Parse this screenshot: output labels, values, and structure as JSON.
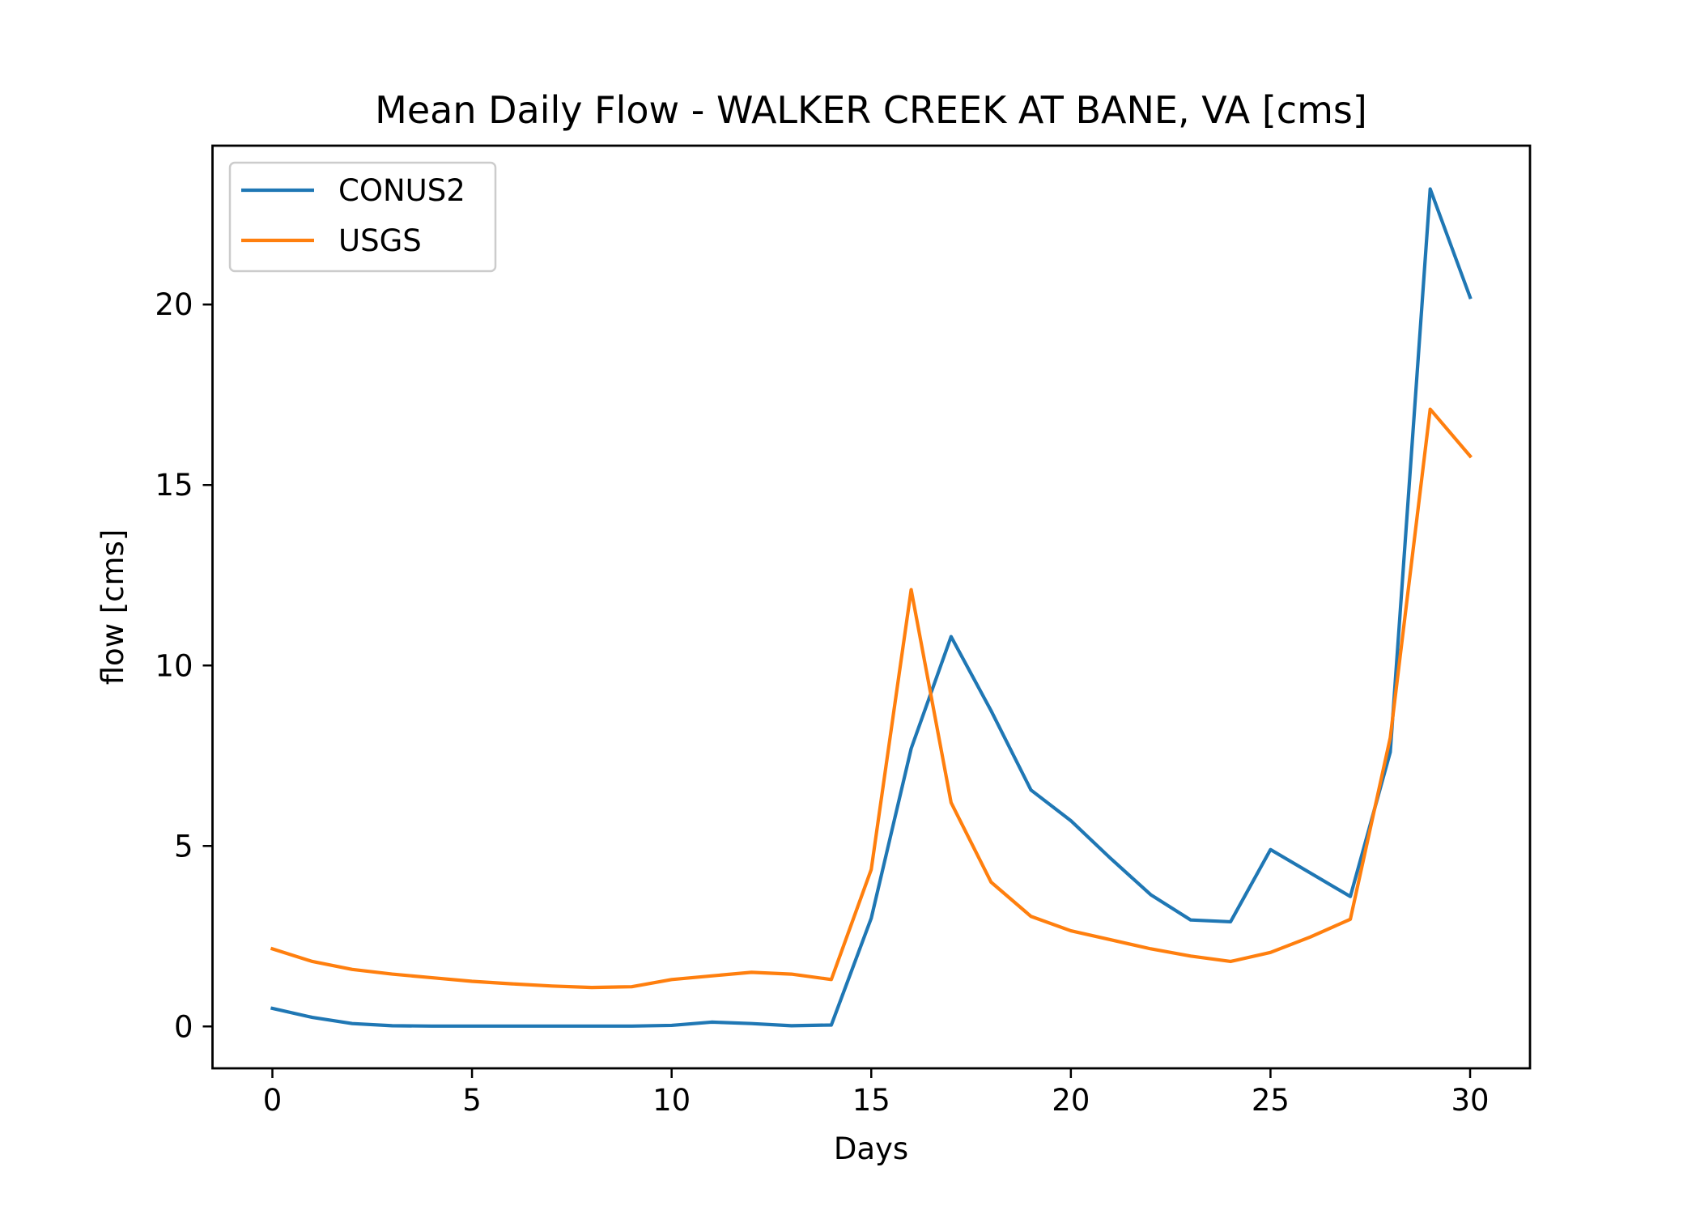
{
  "chart_data": {
    "type": "line",
    "title": "Mean Daily Flow - WALKER CREEK AT BANE, VA [cms]",
    "xlabel": "Days",
    "ylabel": "flow [cms]",
    "x": [
      0,
      1,
      2,
      3,
      4,
      5,
      6,
      7,
      8,
      9,
      10,
      11,
      12,
      13,
      14,
      15,
      16,
      17,
      18,
      19,
      20,
      21,
      22,
      23,
      24,
      25,
      26,
      27,
      28,
      29,
      30
    ],
    "xlim": [
      -1.5,
      31.5
    ],
    "ylim": [
      -1.16,
      24.4
    ],
    "xticks": [
      0,
      5,
      10,
      15,
      20,
      25,
      30
    ],
    "xtick_labels": [
      "0",
      "5",
      "10",
      "15",
      "20",
      "25",
      "30"
    ],
    "yticks": [
      0,
      5,
      10,
      15,
      20
    ],
    "ytick_labels": [
      "0",
      "5",
      "10",
      "15",
      "20"
    ],
    "grid": false,
    "legend": "upper left",
    "series": [
      {
        "name": "CONUS2",
        "color": "#1f77b4",
        "values": [
          0.5,
          0.25,
          0.08,
          0.02,
          0.01,
          0.01,
          0.01,
          0.01,
          0.01,
          0.01,
          0.03,
          0.12,
          0.08,
          0.02,
          0.04,
          3.0,
          7.7,
          10.8,
          8.75,
          6.55,
          5.7,
          4.65,
          3.65,
          2.95,
          2.9,
          4.9,
          4.25,
          3.6,
          7.6,
          23.2,
          20.2
        ]
      },
      {
        "name": "USGS",
        "color": "#ff7f0e",
        "values": [
          2.15,
          1.8,
          1.58,
          1.45,
          1.35,
          1.25,
          1.18,
          1.12,
          1.08,
          1.1,
          1.3,
          1.4,
          1.5,
          1.45,
          1.3,
          4.35,
          12.1,
          6.2,
          4.0,
          3.05,
          2.65,
          2.4,
          2.15,
          1.95,
          1.8,
          2.05,
          2.48,
          2.97,
          8.0,
          17.1,
          15.8
        ]
      }
    ]
  }
}
